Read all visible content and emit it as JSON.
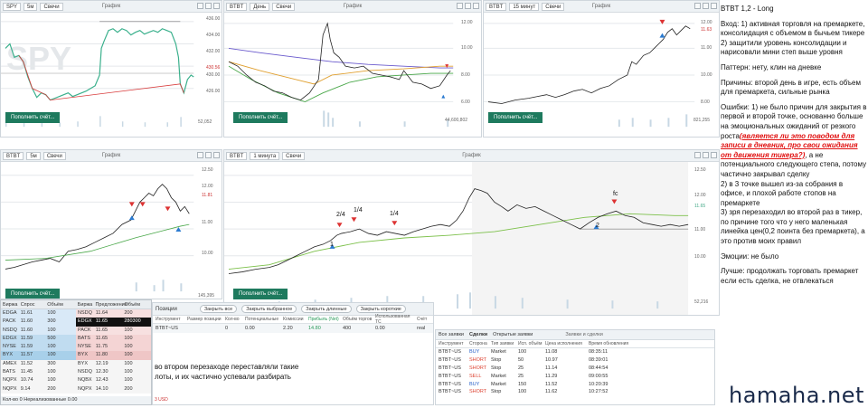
{
  "panel1": {
    "ticker": "SPY",
    "interval": "5м",
    "type": "Свечи",
    "title": "График",
    "levels": [
      "436.00",
      "434.00",
      "432.00",
      "430.56",
      "430.00",
      "428.00",
      "426.00"
    ],
    "times": [
      "14:00",
      "09:30",
      "12:00",
      "14:00",
      "09:30",
      "12:00",
      "14:00",
      "09:30",
      "11:30"
    ],
    "volume": "52,052",
    "button": "Пополнить счёт...",
    "watermark": "SPY"
  },
  "panel2": {
    "ticker": "BTBT",
    "interval": "День",
    "type": "Свечи",
    "title": "График",
    "levels": [
      "12.00",
      "10.00",
      "8.00",
      "7.00",
      "6.00"
    ],
    "times": [
      "25 May",
      "11 Jun",
      "28 Jun",
      "16 Jul",
      "03 Aug",
      "19 Aug",
      "07 Sep",
      "23 Sep",
      "09 Oct",
      "21 Oct",
      "02 Nov"
    ],
    "volume": "44,600,802",
    "button": "Пополнить счёт..."
  },
  "panel3": {
    "ticker": "BTBT",
    "interval": "15 минут",
    "type": "Свечи",
    "title": "График",
    "levels": [
      "12.00",
      "11.63",
      "11.41",
      "11.00",
      "10.00",
      "9.00",
      "8.00"
    ],
    "times": [
      "12:00",
      "12:00",
      "09:30",
      "12:00",
      "09:30",
      "12:00",
      "09:30",
      "12:00",
      "16:00"
    ],
    "volume": "821,255",
    "button": "Пополнить счёт..."
  },
  "panel4": {
    "ticker": "BTBT",
    "interval": "5м",
    "type": "Свечи",
    "title": "График",
    "levels": [
      "12.50",
      "12.00",
      "11.81",
      "11.50",
      "11.00",
      "10.50",
      "10.00",
      "9.50"
    ],
    "times": [
      "09:00",
      "10:00",
      "11:00"
    ],
    "volume": "145,395",
    "button": "Пополнить счёт..."
  },
  "panel5": {
    "ticker": "BTBT",
    "interval": "1 минута",
    "type": "Свечи",
    "title": "График",
    "levels": [
      "12.50",
      "12.00",
      "11.65",
      "11.50",
      "11.00",
      "10.50",
      "10.00",
      "9.50"
    ],
    "times": [
      "07:30",
      "08:00",
      "08:30",
      "09:00",
      "09:30",
      "10:00",
      "10:30",
      "11:00",
      "11:30",
      "12:00",
      "12:30",
      "13:00",
      "13:30",
      "14:00",
      "14:30",
      "15:00"
    ],
    "volume": "52,216",
    "button": "Пополнить счёт...",
    "annotations": [
      "2/4",
      "1/4",
      "1/4",
      "1",
      "2",
      "fc"
    ]
  },
  "dom": {
    "headers": [
      "Биржа",
      "Спрос",
      "Объём",
      "Биржа",
      "Предложение",
      "Объём"
    ],
    "rows": [
      [
        "EDGA",
        "11.61",
        "100",
        "NSDQ",
        "11.64",
        "200"
      ],
      [
        "PACK",
        "11.60",
        "300",
        "EDGX",
        "11.65",
        "280300"
      ],
      [
        "NSDQ",
        "11.60",
        "100",
        "PACK",
        "11.65",
        "100"
      ],
      [
        "EDGX",
        "11.59",
        "500",
        "BATS",
        "11.65",
        "100"
      ],
      [
        "NYSE",
        "11.59",
        "100",
        "NYSE",
        "11.75",
        "100"
      ],
      [
        "BYX",
        "11.57",
        "100",
        "BYX",
        "11.80",
        "100"
      ],
      [
        "AMEX",
        "11.52",
        "300",
        "BYX",
        "12.19",
        "100"
      ],
      [
        "BATS",
        "11.45",
        "100",
        "NSDQ",
        "12.30",
        "100"
      ],
      [
        "NQPX",
        "10.74",
        "100",
        "NQBX",
        "12.43",
        "100"
      ],
      [
        "NQPX",
        "9.14",
        "200",
        "NQPX",
        "14.10",
        "200"
      ]
    ],
    "footer": "Кол-во 0    Нереализованные 0.00"
  },
  "positions": {
    "tab": "Позиции",
    "buttons": [
      "Закрыть все",
      "Закрыть выбранное",
      "Закрыть длинные",
      "Закрыть короткие"
    ],
    "headers": [
      "Инструмент",
      "Размер позиции",
      "Кол-во",
      "Потенциальные",
      "Комиссии",
      "Прибыль (Net)",
      "Объём торгов",
      "Использованная ТС",
      "Счёт"
    ],
    "row": [
      "BTBT~US",
      "",
      "0",
      "0.00",
      "2.20",
      "14.80",
      "400",
      "0.00",
      "real"
    ],
    "note": "во втором перезаходе переставляли такие лоты, и их частично успевали разбирать",
    "total": "3 USD"
  },
  "orders": {
    "tabs": [
      "Все заявки",
      "Сделки",
      "Открытые заявки"
    ],
    "tab2": "Заявки и сделки",
    "headers": [
      "Инструмент",
      "Сторона",
      "Тип заявки",
      "Исп. объём",
      "Цена исполнения",
      "Время обновления"
    ],
    "rows": [
      [
        "BTBT~US",
        "BUY",
        "Market",
        "100",
        "11.08",
        "08:35:11"
      ],
      [
        "BTBT~US",
        "SHORT",
        "Stop",
        "50",
        "10.97",
        "08:39:01"
      ],
      [
        "BTBT~US",
        "SHORT",
        "Stop",
        "25",
        "11.14",
        "08:44:54"
      ],
      [
        "BTBT~US",
        "SELL",
        "Market",
        "25",
        "11.29",
        "09:00:55"
      ],
      [
        "BTBT~US",
        "BUY",
        "Market",
        "150",
        "11.52",
        "10:20:39"
      ],
      [
        "BTBT~US",
        "SHORT",
        "Stop",
        "100",
        "11.62",
        "10:27:52"
      ]
    ]
  },
  "notes": {
    "title": "BTBT 1,2 - Long",
    "entry": "Вход: 1) активная торговля на премаркете, консолидация с объемом в бычьем тикере",
    "entry2": "2) защитили уровень консолидации и нарисовали мини степ выше уровня",
    "pattern": "Паттерн: нету, клин на дневке",
    "reasons": "Причины: второй день в игре, есть объем для премаркета, сильные рынка",
    "errors1": "Ошибки: 1) не было причин для закрытия в первой и второй точке, основанно больше на эмоциональных ожиданий от резкого роста",
    "errors_red": "(является ли это поводом для записи в дневник, про свои ожидания от движения тикера?)",
    "errors2": ", а не потенциального следующего степа, потому частично закрывал сделку",
    "errors3": "2) в 3 точке вышел из-за собрания в офисе, и плохой работе стопов на премаркете",
    "errors4": "3) зря перезаходил во второй раз в тикер, по причине того что у него маленькая линейка цен(0,2 поинта без премаркета), а это против моих правил",
    "emotions": "Эмоции: не было",
    "better": "Лучше: продолжать торговать премаркет если есть сделка, не отвлекаться"
  },
  "watermark": "hamaha.net"
}
